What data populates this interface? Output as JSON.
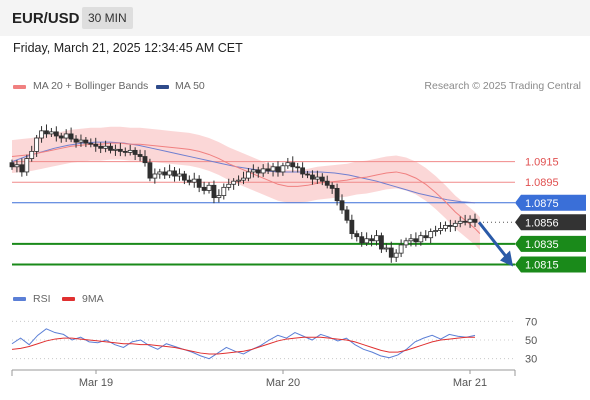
{
  "header": {
    "pair": "EUR/USD",
    "timeframe": "30 MIN",
    "datetime": "Friday, March 21, 2025 12:34:45 AM CET"
  },
  "legend": {
    "ma20_label": "MA 20 + Bollinger Bands",
    "ma50_label": "MA 50",
    "credit": "Research © 2025 Trading Central",
    "rsi_label": "RSI",
    "ma9_label": "9MA"
  },
  "colors": {
    "candle": "#2f2f2f",
    "ma20": "#f08080",
    "bollinger_fill": "#fbd3d3",
    "ma50": "#6f7fd0",
    "resistance": "#e05050",
    "pivot": "#3a6fd8",
    "support": "#1a8a1a",
    "current": "#333333",
    "forecast_arrow": "#2a5aa8",
    "rsi": "#5b7fd6",
    "rsi_ma": "#e03030"
  },
  "chart_data": [
    {
      "type": "candlestick",
      "title": "EUR/USD 30 MIN",
      "x_labels": [
        "Mar 19",
        "Mar 20",
        "Mar 21"
      ],
      "price_ylim": [
        1.0795,
        1.0975
      ],
      "levels": [
        {
          "value": 1.0915,
          "label": "1.0915",
          "kind": "resistance"
        },
        {
          "value": 1.0895,
          "label": "1.0895",
          "kind": "resistance"
        },
        {
          "value": 1.0875,
          "label": "1.0875",
          "kind": "pivot"
        },
        {
          "value": 1.0856,
          "label": "1.0856",
          "kind": "current"
        },
        {
          "value": 1.0835,
          "label": "1.0835",
          "kind": "support"
        },
        {
          "value": 1.0815,
          "label": "1.0815",
          "kind": "support"
        }
      ],
      "forecast": {
        "direction": "down",
        "from": 1.0856,
        "to": 1.0815
      },
      "close": [
        1.091,
        1.0912,
        1.0905,
        1.0918,
        1.0925,
        1.0938,
        1.0945,
        1.0942,
        1.0944,
        1.094,
        1.0938,
        1.0942,
        1.0937,
        1.0934,
        1.0936,
        1.0933,
        1.0932,
        1.093,
        1.0928,
        1.093,
        1.0926,
        1.0927,
        1.0925,
        1.0924,
        1.0926,
        1.0922,
        1.092,
        1.0914,
        1.0899,
        1.0903,
        1.0905,
        1.0902,
        1.0906,
        1.0901,
        1.0903,
        1.0897,
        1.0895,
        1.0898,
        1.089,
        1.0887,
        1.0892,
        1.088,
        1.0882,
        1.089,
        1.0893,
        1.0896,
        1.0897,
        1.0899,
        1.0905,
        1.0907,
        1.0904,
        1.0908,
        1.0906,
        1.091,
        1.0905,
        1.0911,
        1.0914,
        1.091,
        1.0909,
        1.0903,
        1.0902,
        1.0898,
        1.09,
        1.0896,
        1.0892,
        1.0889,
        1.0877,
        1.0868,
        1.0858,
        1.0845,
        1.0842,
        1.0836,
        1.084,
        1.0838,
        1.0843,
        1.083,
        1.0831,
        1.0822,
        1.0826,
        1.0834,
        1.0838,
        1.084,
        1.0837,
        1.0843,
        1.0841,
        1.0847,
        1.0848,
        1.085,
        1.0853,
        1.0852,
        1.0855,
        1.0857,
        1.0856,
        1.0859,
        1.0856
      ],
      "ma20": [
        1.092,
        1.0921,
        1.0922,
        1.0924,
        1.0926,
        1.0928,
        1.093,
        1.0931,
        1.0932,
        1.0932,
        1.0933,
        1.0933,
        1.0932,
        1.0932,
        1.0931,
        1.093,
        1.0929,
        1.0928,
        1.0927,
        1.0925,
        1.0922,
        1.0918,
        1.0913,
        1.0909,
        1.0905,
        1.0901,
        1.0897,
        1.0893,
        1.0891,
        1.0891,
        1.0892,
        1.0894,
        1.0895,
        1.0896,
        1.0897,
        1.0899,
        1.09,
        1.0902,
        1.0904,
        1.0905,
        1.0903,
        1.0899,
        1.0893,
        1.0885,
        1.0876,
        1.0866,
        1.0858,
        1.085,
        1.0845,
        1.0842,
        1.084,
        1.0839,
        1.084,
        1.0841,
        1.0843
      ],
      "ma20_x": [
        0,
        2,
        4,
        6,
        8,
        10,
        12,
        14,
        16,
        18,
        20,
        22,
        24,
        26,
        28,
        30,
        32,
        34,
        36,
        38,
        40,
        42,
        44,
        46,
        48,
        50,
        52,
        54,
        56,
        58,
        60,
        62,
        64,
        66,
        68,
        70,
        72,
        74,
        76,
        78,
        80,
        82,
        84,
        86,
        88,
        90,
        92,
        94,
        95,
        95,
        95,
        95,
        95,
        95,
        95
      ],
      "ma50": [
        1.0915,
        1.092,
        1.0924,
        1.0928,
        1.0931,
        1.0933,
        1.0934,
        1.0934,
        1.0933,
        1.0931,
        1.0928,
        1.0925,
        1.0922,
        1.0919,
        1.0916,
        1.0913,
        1.091,
        1.0908,
        1.0906,
        1.0905,
        1.0905,
        1.0905,
        1.0905,
        1.0904,
        1.0902,
        1.0899,
        1.0896,
        1.0892,
        1.0888,
        1.0884,
        1.0881,
        1.0878,
        1.0876,
        1.0875
      ],
      "rsi": [
        46,
        52,
        45,
        55,
        62,
        58,
        56,
        50,
        53,
        48,
        47,
        50,
        45,
        42,
        48,
        50,
        44,
        40,
        46,
        43,
        40,
        37,
        33,
        30,
        36,
        42,
        38,
        35,
        40,
        44,
        50,
        55,
        52,
        58,
        54,
        50,
        56,
        53,
        49,
        52,
        45,
        40,
        37,
        33,
        31,
        34,
        40,
        48,
        52,
        55,
        51,
        56,
        54,
        53,
        55
      ],
      "rsi_ma": [
        40,
        41,
        43,
        46,
        49,
        51,
        52,
        52,
        51,
        50,
        49,
        48,
        47,
        46,
        46,
        45,
        45,
        44,
        43,
        42,
        40,
        38,
        36,
        35,
        35,
        36,
        37,
        38,
        40,
        43,
        46,
        49,
        51,
        52,
        53,
        53,
        53,
        52,
        51,
        50,
        48,
        45,
        42,
        39,
        37,
        37,
        39,
        42,
        45,
        48,
        50,
        51,
        52,
        53,
        53
      ],
      "rsi_ylim": [
        20,
        80
      ],
      "rsi_ticks": [
        "70",
        "50",
        "30"
      ]
    }
  ]
}
